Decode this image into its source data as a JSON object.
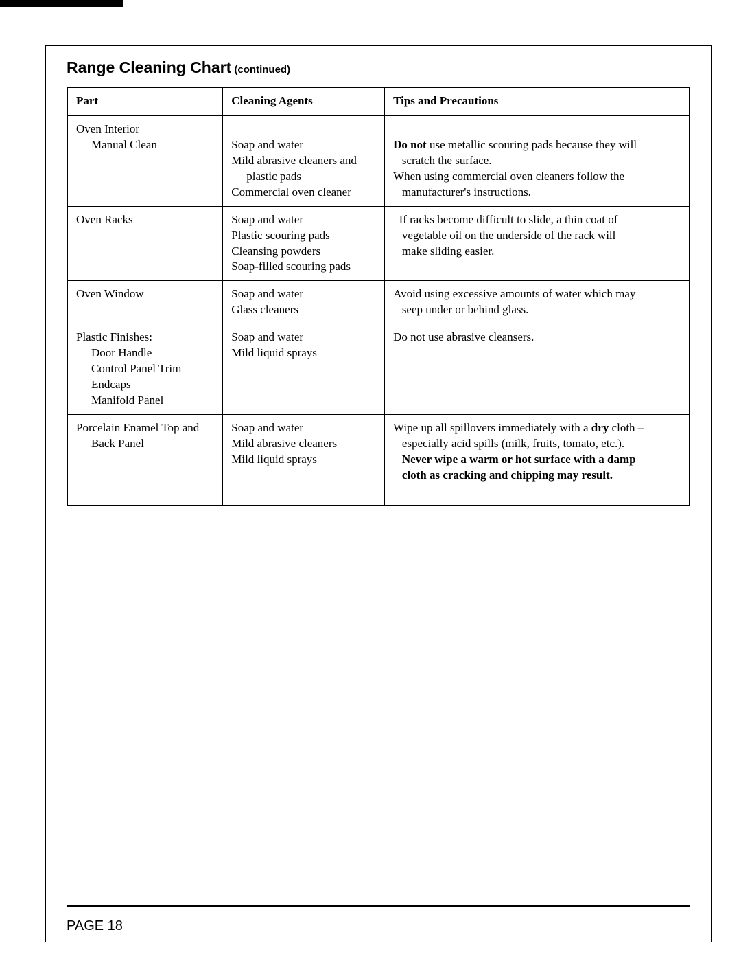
{
  "title": {
    "main": "Range Cleaning Chart",
    "sub": " (continued)"
  },
  "headers": {
    "part": "Part",
    "agents": "Cleaning Agents",
    "tips": "Tips and Precautions"
  },
  "rows": [
    {
      "part_lines": [
        {
          "text": "Oven Interior",
          "indent": 0
        },
        {
          "text": "Manual Clean",
          "indent": 1
        }
      ],
      "agent_lines": [
        {
          "text": "",
          "indent": 0
        },
        {
          "text": "Soap and water",
          "indent": 0
        },
        {
          "text": "Mild abrasive cleaners and",
          "indent": 0
        },
        {
          "text": "plastic pads",
          "indent": 1
        },
        {
          "text": "Commercial oven cleaner",
          "indent": 0
        }
      ],
      "tips_html": "<br><span class='bold'>Do not</span> use metallic scouring pads because they will<br>&nbsp;&nbsp;&nbsp;scratch the surface.<br>When using commercial oven cleaners follow the<br>&nbsp;&nbsp;&nbsp;manufacturer's instructions."
    },
    {
      "part_lines": [
        {
          "text": "Oven Racks",
          "indent": 0
        }
      ],
      "agent_lines": [
        {
          "text": "Soap and water",
          "indent": 0
        },
        {
          "text": "Plastic scouring pads",
          "indent": 0
        },
        {
          "text": "Cleansing powders",
          "indent": 0
        },
        {
          "text": "Soap-filled scouring pads",
          "indent": 0
        }
      ],
      "tips_html": "&nbsp;&nbsp;If racks become difficult to slide, a thin coat of<br>&nbsp;&nbsp;&nbsp;vegetable oil on the underside of the rack will<br>&nbsp;&nbsp;&nbsp;make sliding easier."
    },
    {
      "part_lines": [
        {
          "text": "Oven Window",
          "indent": 0
        }
      ],
      "agent_lines": [
        {
          "text": "Soap and water",
          "indent": 0
        },
        {
          "text": "Glass cleaners",
          "indent": 0
        }
      ],
      "tips_html": "Avoid using excessive amounts of water which may<br>&nbsp;&nbsp;&nbsp;seep under or behind glass."
    },
    {
      "part_lines": [
        {
          "text": "Plastic Finishes:",
          "indent": 0
        },
        {
          "text": "Door Handle",
          "indent": 1
        },
        {
          "text": "Control Panel Trim",
          "indent": 1
        },
        {
          "text": "Endcaps",
          "indent": 1
        },
        {
          "text": "Manifold Panel",
          "indent": 1
        }
      ],
      "agent_lines": [
        {
          "text": "Soap and water",
          "indent": 0
        },
        {
          "text": "Mild liquid sprays",
          "indent": 0
        }
      ],
      "tips_html": "Do not use abrasive cleansers."
    },
    {
      "part_lines": [
        {
          "text": "Porcelain Enamel Top and",
          "indent": 0
        },
        {
          "text": "Back Panel",
          "indent": 1
        }
      ],
      "agent_lines": [
        {
          "text": "Soap and water",
          "indent": 0
        },
        {
          "text": "Mild abrasive cleaners",
          "indent": 0
        },
        {
          "text": "Mild liquid sprays",
          "indent": 0
        }
      ],
      "tips_html": "Wipe up all spillovers immediately with a <span class='bold'>dry</span> cloth –<br>&nbsp;&nbsp;&nbsp;especially acid spills (milk, fruits, tomato, etc.).<br>&nbsp;&nbsp;&nbsp;<span class='bold'>Never wipe a warm or hot surface with a damp<br>&nbsp;&nbsp;&nbsp;cloth as cracking and chipping may result.</span><br>&nbsp;"
    }
  ],
  "page_number": "PAGE 18"
}
